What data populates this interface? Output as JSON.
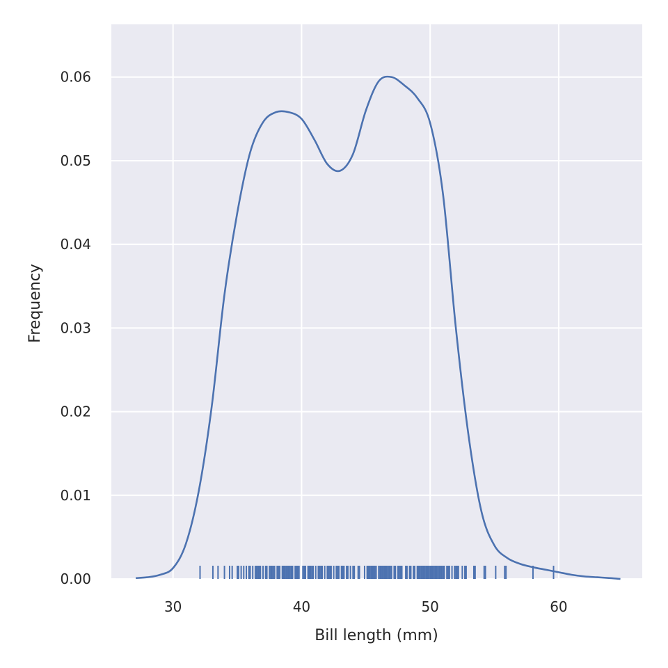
{
  "chart_data": {
    "type": "line",
    "title": "",
    "xlabel": "Bill length (mm)",
    "ylabel": "Frequency",
    "xlim": [
      25.2,
      66.5
    ],
    "ylim": [
      0,
      0.0663
    ],
    "x_ticks": [
      30,
      40,
      50,
      60
    ],
    "y_ticks": [
      0.0,
      0.01,
      0.02,
      0.03,
      0.04,
      0.05,
      0.06
    ],
    "grid": true,
    "legend": "none",
    "colors": {
      "background": "#eaeaf2",
      "grid": "#ffffff",
      "line": "#4c72b0",
      "text": "#262626"
    },
    "series": [
      {
        "kde_x": [
          27.1,
          28,
          29,
          30,
          31,
          32,
          33,
          34,
          35,
          36,
          37,
          38,
          39,
          40,
          41,
          42,
          43,
          44,
          45,
          46,
          47,
          48,
          49,
          50,
          51,
          52,
          53,
          54,
          55,
          56,
          57,
          58,
          59,
          60,
          61,
          62,
          63,
          64,
          64.8
        ],
        "kde_y": [
          0.0001,
          0.0002,
          0.0005,
          0.0013,
          0.0042,
          0.0105,
          0.0205,
          0.034,
          0.0438,
          0.051,
          0.0546,
          0.0558,
          0.0558,
          0.055,
          0.0525,
          0.0496,
          0.0488,
          0.0508,
          0.056,
          0.0595,
          0.06,
          0.059,
          0.0575,
          0.0545,
          0.046,
          0.03,
          0.017,
          0.008,
          0.004,
          0.0025,
          0.0018,
          0.0014,
          0.0011,
          0.0008,
          0.0005,
          0.0003,
          0.0002,
          0.0001,
          0.0
        ],
        "rug": [
          32.1,
          33.1,
          33.5,
          34.0,
          34.4,
          34.6,
          35.0,
          35.1,
          35.3,
          35.5,
          35.7,
          35.9,
          36.0,
          36.2,
          36.4,
          36.5,
          36.6,
          36.7,
          36.8,
          37.0,
          37.2,
          37.3,
          37.5,
          37.6,
          37.7,
          37.8,
          37.9,
          38.1,
          38.2,
          38.3,
          38.5,
          38.6,
          38.7,
          38.8,
          38.9,
          39.0,
          39.1,
          39.2,
          39.3,
          39.5,
          39.6,
          39.7,
          39.8,
          40.1,
          40.2,
          40.3,
          40.5,
          40.6,
          40.7,
          40.8,
          40.9,
          41.1,
          41.3,
          41.4,
          41.5,
          41.6,
          41.8,
          42.0,
          42.1,
          42.2,
          42.3,
          42.5,
          42.7,
          42.8,
          42.9,
          43.1,
          43.2,
          43.3,
          43.5,
          43.6,
          43.8,
          44.0,
          44.1,
          44.4,
          44.5,
          44.9,
          45.1,
          45.2,
          45.3,
          45.4,
          45.5,
          45.6,
          45.7,
          45.8,
          46.0,
          46.1,
          46.2,
          46.3,
          46.4,
          46.5,
          46.6,
          46.7,
          46.8,
          46.9,
          47.0,
          47.2,
          47.3,
          47.5,
          47.6,
          47.7,
          47.8,
          48.1,
          48.2,
          48.4,
          48.5,
          48.7,
          48.8,
          49.0,
          49.1,
          49.2,
          49.3,
          49.4,
          49.5,
          49.6,
          49.7,
          49.8,
          49.9,
          50.0,
          50.1,
          50.2,
          50.3,
          50.4,
          50.5,
          50.6,
          50.7,
          50.8,
          50.9,
          51.0,
          51.1,
          51.3,
          51.4,
          51.5,
          51.7,
          51.9,
          52.0,
          52.1,
          52.2,
          52.5,
          52.7,
          52.8,
          53.4,
          53.5,
          54.2,
          54.3,
          55.1,
          55.8,
          55.9,
          58.0,
          59.6
        ]
      }
    ]
  }
}
